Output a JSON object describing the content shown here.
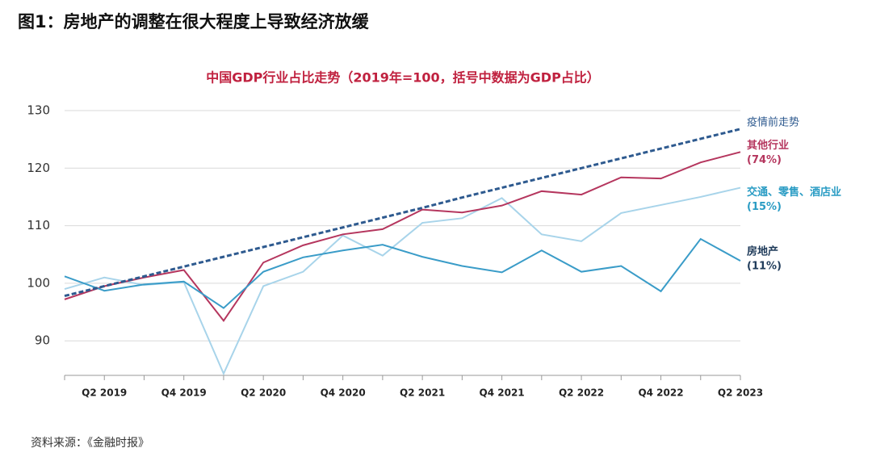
{
  "page_title": "图1：房地产的调整在很大程度上导致经济放缓",
  "source": "资料来源：《金融时报》",
  "chart_data": {
    "type": "line",
    "title": "中国GDP行业占比走势（2019年=100，括号中数据为GDP占比）",
    "categories": [
      null,
      "Q2 2019",
      null,
      "Q4 2019",
      null,
      "Q2 2020",
      null,
      "Q4 2020",
      null,
      "Q2 2021",
      null,
      "Q4 2021",
      null,
      "Q2 2022",
      null,
      "Q4 2022",
      null,
      "Q2 2023"
    ],
    "ylim": [
      84,
      130
    ],
    "yticks": [
      90,
      100,
      110,
      120,
      130
    ],
    "grid": true,
    "series": [
      {
        "name": "疫情前走势",
        "color": "#2e5a8f",
        "label_color": "#2e5a8f",
        "dashed": true,
        "values": [
          97.8,
          99.5,
          101.2,
          102.9,
          104.6,
          106.3,
          108.0,
          109.7,
          111.4,
          113.1,
          114.9,
          116.6,
          118.3,
          120.0,
          121.7,
          123.4,
          125.1,
          126.8
        ]
      },
      {
        "name": "其他行业",
        "note": "(74%)",
        "color": "#b5365e",
        "label_color": "#b5365e",
        "dashed": false,
        "values": [
          97.2,
          99.5,
          101.0,
          102.3,
          93.5,
          103.6,
          106.6,
          108.5,
          109.4,
          112.8,
          112.3,
          113.5,
          116.0,
          115.4,
          118.4,
          118.2,
          121.0,
          122.8
        ]
      },
      {
        "name": "交通、零售、酒店业",
        "note": "(15%)",
        "color": "#a8d4ea",
        "label_color": "#2a9cc4",
        "dashed": false,
        "values": [
          99.0,
          101.0,
          99.7,
          100.2,
          84.3,
          99.5,
          102.0,
          108.3,
          104.8,
          110.5,
          111.3,
          114.8,
          108.5,
          107.3,
          112.2,
          113.6,
          115.0,
          116.6
        ]
      },
      {
        "name": "房地产",
        "note": "(11%)",
        "color": "#3a9cc8",
        "label_color": "#1f3b5a",
        "dashed": false,
        "values": [
          101.2,
          98.7,
          99.8,
          100.3,
          95.7,
          102.0,
          104.5,
          105.7,
          106.7,
          104.6,
          103.0,
          101.9,
          105.7,
          102.0,
          103.0,
          98.6,
          107.7,
          103.9
        ]
      }
    ]
  }
}
